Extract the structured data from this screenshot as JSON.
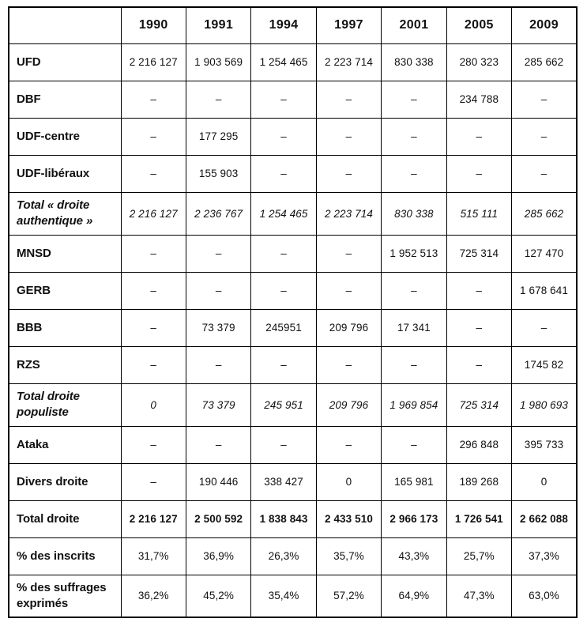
{
  "chart_data": {
    "type": "table",
    "title": "",
    "columns": [
      "",
      "1990",
      "1991",
      "1994",
      "1997",
      "2001",
      "2005",
      "2009"
    ],
    "rows": [
      {
        "label": "UFD",
        "style": "normal",
        "values": [
          "2 216 127",
          "1 903 569",
          "1 254 465",
          "2 223 714",
          "830 338",
          "280 323",
          "285 662"
        ]
      },
      {
        "label": "DBF",
        "style": "normal",
        "values": [
          "–",
          "–",
          "–",
          "–",
          "–",
          "234 788",
          "–"
        ]
      },
      {
        "label": "UDF-centre",
        "style": "normal",
        "values": [
          "–",
          "177 295",
          "–",
          "–",
          "–",
          "–",
          "–"
        ]
      },
      {
        "label": "UDF-libéraux",
        "style": "normal",
        "values": [
          "–",
          "155 903",
          "–",
          "–",
          "–",
          "–",
          "–"
        ]
      },
      {
        "label": "Total « droite authentique »",
        "style": "italic",
        "values": [
          "2 216 127",
          "2 236 767",
          "1 254 465",
          "2 223 714",
          "830 338",
          "515 111",
          "285 662"
        ]
      },
      {
        "label": "MNSD",
        "style": "normal",
        "values": [
          "–",
          "–",
          "–",
          "–",
          "1 952 513",
          "725 314",
          "127 470"
        ]
      },
      {
        "label": "GERB",
        "style": "normal",
        "values": [
          "–",
          "–",
          "–",
          "–",
          "–",
          "–",
          "1 678 641"
        ]
      },
      {
        "label": "BBB",
        "style": "normal",
        "values": [
          "–",
          "73 379",
          "245951",
          "209 796",
          "17 341",
          "–",
          "–"
        ]
      },
      {
        "label": "RZS",
        "style": "normal",
        "values": [
          "–",
          "–",
          "–",
          "–",
          "–",
          "–",
          "1745 82"
        ]
      },
      {
        "label": "Total droite populiste",
        "style": "italic",
        "values": [
          "0",
          "73 379",
          "245 951",
          "209 796",
          "1 969 854",
          "725 314",
          "1 980 693"
        ]
      },
      {
        "label": "Ataka",
        "style": "normal",
        "values": [
          "–",
          "–",
          "–",
          "–",
          "–",
          "296 848",
          "395 733"
        ]
      },
      {
        "label": "Divers droite",
        "style": "normal",
        "values": [
          "–",
          "190 446",
          "338 427",
          "0",
          "165 981",
          "189 268",
          "0"
        ]
      },
      {
        "label": "Total droite",
        "style": "bold",
        "values": [
          "2 216 127",
          "2 500 592",
          "1 838 843",
          "2 433 510",
          "2 966 173",
          "1 726 541",
          "2 662 088"
        ]
      },
      {
        "label": "% des inscrits",
        "style": "normal",
        "values": [
          "31,7%",
          "36,9%",
          "26,3%",
          "35,7%",
          "43,3%",
          "25,7%",
          "37,3%"
        ]
      },
      {
        "label": "% des suffrages exprimés",
        "style": "normal",
        "values": [
          "36,2%",
          "45,2%",
          "35,4%",
          "57,2%",
          "64,9%",
          "47,3%",
          "63,0%"
        ]
      }
    ]
  }
}
